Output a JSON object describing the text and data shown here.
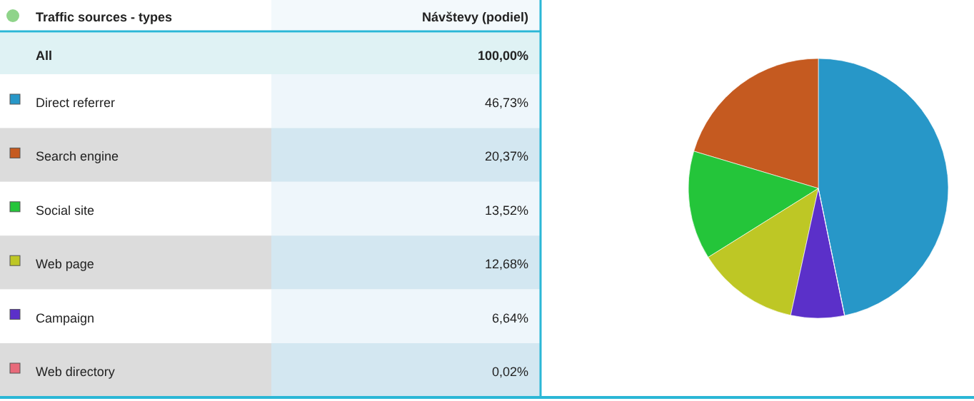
{
  "chart_data": {
    "type": "pie",
    "legend_title": "Traffic sources - types",
    "title": "Návštevy (podiel)",
    "annotations": [
      "All"
    ],
    "totals": [
      "100,00%"
    ],
    "categories": [
      "Direct referrer",
      "Search engine",
      "Social site",
      "Web page",
      "Campaign",
      "Web directory"
    ],
    "values": [
      46.73,
      20.37,
      13.52,
      12.68,
      6.64,
      0.02
    ],
    "value_labels": [
      "46,73%",
      "20,37%",
      "13,52%",
      "12,68%",
      "6,64%",
      "0,02%"
    ],
    "colors": [
      "#2797c8",
      "#c55a20",
      "#24c53a",
      "#bec725",
      "#5b30c9",
      "#e86a7a"
    ],
    "legend": "left"
  }
}
